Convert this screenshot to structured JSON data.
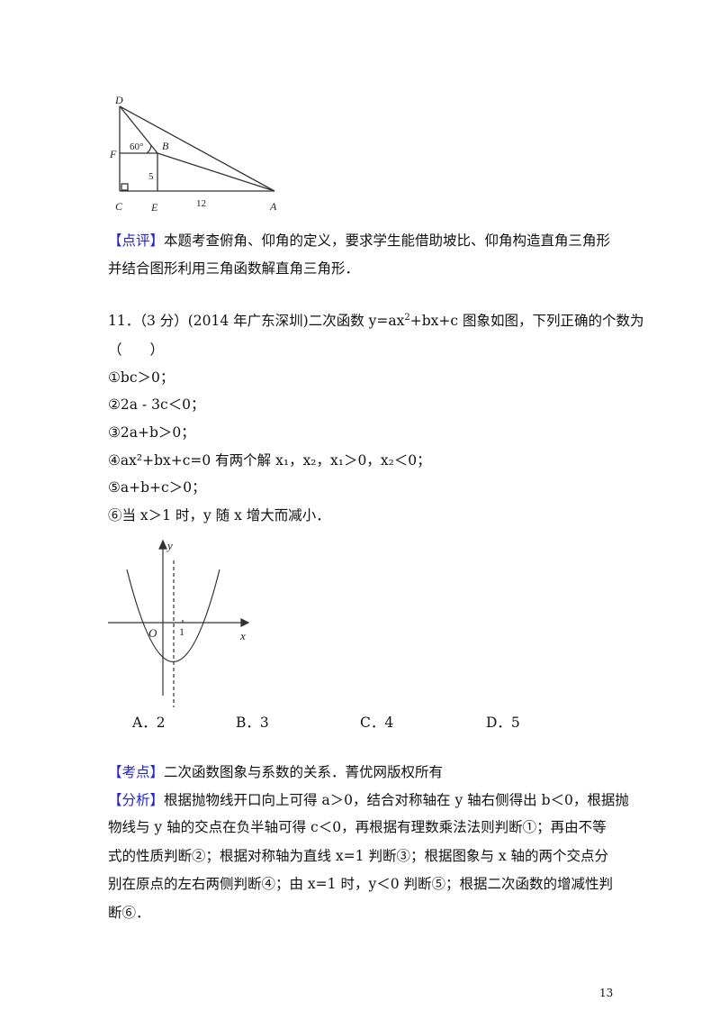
{
  "figure1": {
    "labels": {
      "D": "D",
      "F": "F",
      "C": "C",
      "E": "E",
      "B": "B",
      "A": "A",
      "angle": "60°",
      "side_BE": "5",
      "side_EA": "12"
    }
  },
  "comment": {
    "tag": "【点评】",
    "lines": [
      "本题考查俯角、仰角的定义，要求学生能借助坡比、仰角构造直角三角形",
      "并结合图形利用三角函数解直角三角形．"
    ]
  },
  "question": {
    "stem_prefix": "11．（3 分）(2014 年广东深圳)二次函数 y=ax",
    "stem_suffix": "+bx+c 图象如图，下列正确的个数为",
    "blank": "（　　）",
    "items": [
      "①bc＞0；",
      "②2a - 3c＜0；",
      "③2a+b＞0；",
      "④ax²+bx+c=0 有两个解 x₁，x₂，x₁＞0，x₂＜0；",
      "⑤a+b+c＞0；",
      "⑥当 x＞1 时，y 随 x 增大而减小．"
    ],
    "choices": [
      "A．2",
      "B．3",
      "C．4",
      "D．5"
    ]
  },
  "figure2": {
    "labels": {
      "y": "y",
      "x": "x",
      "origin": "O",
      "one": "1"
    }
  },
  "kaodian": {
    "tag": "【考点】",
    "text": "二次函数图象与系数的关系．菁优网版权所有"
  },
  "analysis": {
    "tag": "【分析】",
    "lines": [
      "根据抛物线开口向上可得 a＞0，结合对称轴在 y 轴右侧得出 b＜0，根据抛",
      "物线与 y 轴的交点在负半轴可得 c＜0，再根据有理数乘法法则判断①；再由不等",
      "式的性质判断②；根据对称轴为直线 x=1 判断③；根据图象与 x 轴的两个交点分",
      "别在原点的左右两侧判断④；由 x=1 时，y＜0 判断⑤；根据二次函数的增减性判",
      "断⑥．"
    ]
  },
  "page_number": "13",
  "colors": {
    "tag": "#2323d8"
  }
}
